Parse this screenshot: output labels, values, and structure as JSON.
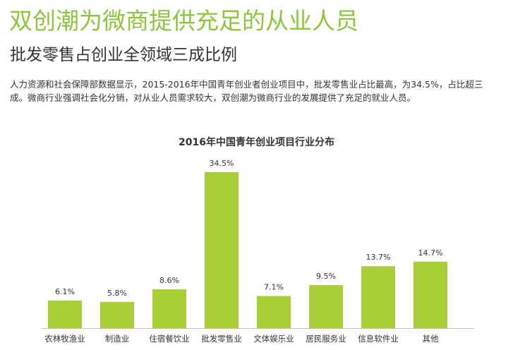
{
  "headline": "双创潮为微商提供充足的从业人员",
  "subheadline": "批发零售占创业全领域三成比例",
  "body_lines": [
    "人力资源和社会保障部数据显示，2015-2016年中国青年创业者创业项目中，批发零售业占比最高，为34.5%，占比超三",
    "成。微商行业强调社会化分销，对从业人员需求较大，双创潮为微商行业的发展提供了充足的就业人员。"
  ],
  "colors": {
    "headline": "#8cc63f",
    "bar": "#a9cf38",
    "text": "#333333"
  },
  "chart_data": {
    "type": "bar",
    "title": "2016年中国青年创业项目行业分布",
    "categories": [
      "农林牧渔业",
      "制造业",
      "住宿餐饮业",
      "批发零售业",
      "文体娱乐业",
      "居民服务业",
      "信息软件业",
      "其他"
    ],
    "values": [
      6.1,
      5.8,
      8.6,
      34.5,
      7.1,
      9.5,
      13.7,
      14.7
    ],
    "value_labels": [
      "6.1%",
      "5.8%",
      "8.6%",
      "34.5%",
      "7.1%",
      "9.5%",
      "13.7%",
      "14.7%"
    ],
    "xlabel": "",
    "ylabel": "",
    "ylim": [
      0,
      34.5
    ],
    "grid": false,
    "legend": "none"
  }
}
